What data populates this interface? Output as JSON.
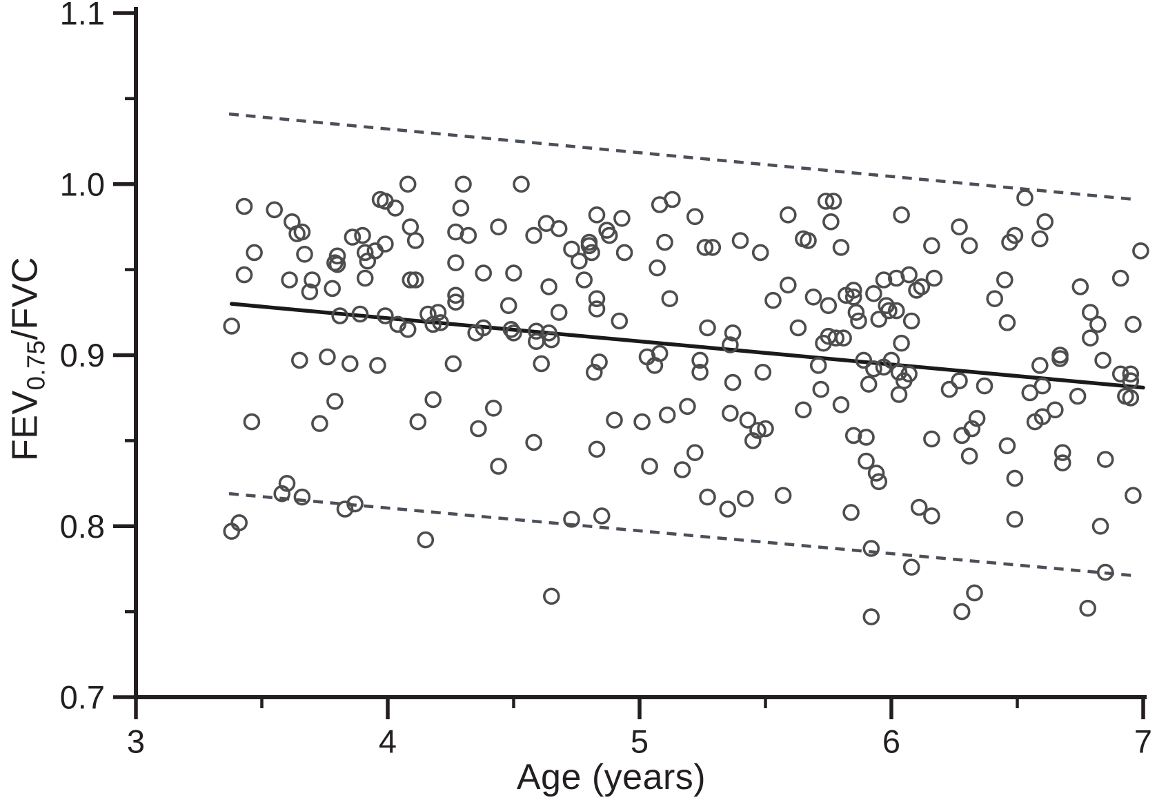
{
  "chart_data": {
    "type": "scatter",
    "xlabel": "Age (years)",
    "ylabel_main": "FEV",
    "ylabel_sub": "0.75",
    "ylabel_rest": "/FVC",
    "x_axis": {
      "min": 3,
      "max": 7,
      "major_ticks": [
        3,
        4,
        5,
        6,
        7
      ],
      "tick_labels": [
        "3",
        "4",
        "5",
        "6",
        "7"
      ],
      "minor_ticks": [
        3.5,
        4.5,
        5.5,
        6.5
      ]
    },
    "y_axis": {
      "min": 0.7,
      "max": 1.1,
      "major_ticks": [
        0.7,
        0.8,
        0.9,
        1.0,
        1.1
      ],
      "tick_labels": [
        "0.7",
        "0.8",
        "0.9",
        "1.0",
        "1.1"
      ],
      "minor_ticks": [
        0.75,
        0.85,
        0.95,
        1.05
      ]
    },
    "grid": false,
    "legend": "none",
    "regression_line": {
      "x1": 3.38,
      "y1": 0.93,
      "x2": 7.0,
      "y2": 0.881,
      "style": "solid"
    },
    "upper_limit_line": {
      "x1": 3.37,
      "y1": 1.041,
      "x2": 6.97,
      "y2": 0.991,
      "style": "dashed"
    },
    "lower_limit_line": {
      "x1": 3.37,
      "y1": 0.819,
      "x2": 6.97,
      "y2": 0.771,
      "style": "dashed"
    },
    "colors": {
      "background": "#ffffff",
      "axis": "#231f20",
      "tick_label": "#231f20",
      "point_stroke": "#4d4d4d",
      "regression": "#1a1a1a",
      "dashed": "#4b5058"
    },
    "points": [
      [
        3.43,
        0.987
      ],
      [
        3.55,
        0.985
      ],
      [
        3.62,
        0.978
      ],
      [
        3.64,
        0.971
      ],
      [
        3.66,
        0.972
      ],
      [
        3.86,
        0.969
      ],
      [
        3.9,
        0.97
      ],
      [
        3.97,
        0.991
      ],
      [
        3.99,
        0.99
      ],
      [
        3.47,
        0.96
      ],
      [
        3.67,
        0.959
      ],
      [
        3.8,
        0.958
      ],
      [
        3.8,
        0.953
      ],
      [
        3.91,
        0.96
      ],
      [
        3.95,
        0.961
      ],
      [
        3.99,
        0.965
      ],
      [
        3.92,
        0.955
      ],
      [
        3.43,
        0.947
      ],
      [
        3.61,
        0.944
      ],
      [
        3.7,
        0.944
      ],
      [
        3.69,
        0.937
      ],
      [
        3.78,
        0.939
      ],
      [
        3.79,
        0.954
      ],
      [
        3.91,
        0.945
      ],
      [
        3.81,
        0.923
      ],
      [
        3.89,
        0.924
      ],
      [
        3.99,
        0.923
      ],
      [
        3.38,
        0.917
      ],
      [
        3.65,
        0.897
      ],
      [
        3.76,
        0.899
      ],
      [
        3.85,
        0.895
      ],
      [
        3.96,
        0.894
      ],
      [
        3.79,
        0.873
      ],
      [
        3.46,
        0.861
      ],
      [
        3.73,
        0.86
      ],
      [
        3.58,
        0.819
      ],
      [
        3.6,
        0.825
      ],
      [
        3.66,
        0.817
      ],
      [
        3.83,
        0.81
      ],
      [
        3.87,
        0.813
      ],
      [
        3.38,
        0.797
      ],
      [
        3.41,
        0.802
      ],
      [
        4.08,
        1.0
      ],
      [
        4.3,
        1.0
      ],
      [
        4.53,
        1.0
      ],
      [
        4.03,
        0.986
      ],
      [
        4.29,
        0.986
      ],
      [
        4.09,
        0.975
      ],
      [
        4.11,
        0.967
      ],
      [
        4.27,
        0.972
      ],
      [
        4.32,
        0.97
      ],
      [
        4.44,
        0.975
      ],
      [
        4.58,
        0.97
      ],
      [
        4.63,
        0.977
      ],
      [
        4.68,
        0.974
      ],
      [
        4.83,
        0.982
      ],
      [
        4.93,
        0.98
      ],
      [
        4.87,
        0.973
      ],
      [
        4.88,
        0.97
      ],
      [
        4.73,
        0.962
      ],
      [
        4.8,
        0.964
      ],
      [
        4.8,
        0.966
      ],
      [
        4.81,
        0.96
      ],
      [
        4.94,
        0.96
      ],
      [
        4.76,
        0.955
      ],
      [
        4.27,
        0.954
      ],
      [
        4.38,
        0.948
      ],
      [
        4.5,
        0.948
      ],
      [
        4.09,
        0.944
      ],
      [
        4.11,
        0.944
      ],
      [
        4.78,
        0.944
      ],
      [
        4.64,
        0.94
      ],
      [
        4.83,
        0.933
      ],
      [
        4.83,
        0.927
      ],
      [
        4.27,
        0.935
      ],
      [
        4.27,
        0.931
      ],
      [
        4.48,
        0.929
      ],
      [
        4.68,
        0.925
      ],
      [
        4.92,
        0.92
      ],
      [
        4.16,
        0.924
      ],
      [
        4.2,
        0.925
      ],
      [
        4.18,
        0.918
      ],
      [
        4.21,
        0.919
      ],
      [
        4.04,
        0.918
      ],
      [
        4.08,
        0.915
      ],
      [
        4.35,
        0.913
      ],
      [
        4.38,
        0.916
      ],
      [
        4.49,
        0.915
      ],
      [
        4.5,
        0.913
      ],
      [
        4.59,
        0.914
      ],
      [
        4.59,
        0.908
      ],
      [
        4.64,
        0.913
      ],
      [
        4.65,
        0.909
      ],
      [
        4.26,
        0.895
      ],
      [
        4.61,
        0.895
      ],
      [
        4.82,
        0.89
      ],
      [
        4.84,
        0.896
      ],
      [
        4.18,
        0.874
      ],
      [
        4.12,
        0.861
      ],
      [
        4.42,
        0.869
      ],
      [
        4.36,
        0.857
      ],
      [
        4.58,
        0.849
      ],
      [
        4.44,
        0.835
      ],
      [
        4.83,
        0.845
      ],
      [
        4.9,
        0.862
      ],
      [
        4.73,
        0.804
      ],
      [
        4.85,
        0.806
      ],
      [
        4.15,
        0.792
      ],
      [
        4.65,
        0.759
      ],
      [
        5.08,
        0.988
      ],
      [
        5.13,
        0.991
      ],
      [
        5.22,
        0.981
      ],
      [
        5.59,
        0.982
      ],
      [
        5.74,
        0.99
      ],
      [
        5.77,
        0.99
      ],
      [
        5.76,
        0.978
      ],
      [
        5.1,
        0.966
      ],
      [
        5.26,
        0.963
      ],
      [
        5.29,
        0.963
      ],
      [
        5.4,
        0.967
      ],
      [
        5.48,
        0.96
      ],
      [
        5.65,
        0.968
      ],
      [
        5.67,
        0.967
      ],
      [
        5.8,
        0.963
      ],
      [
        5.07,
        0.951
      ],
      [
        5.59,
        0.941
      ],
      [
        5.12,
        0.933
      ],
      [
        5.53,
        0.932
      ],
      [
        5.69,
        0.934
      ],
      [
        5.75,
        0.929
      ],
      [
        5.82,
        0.935
      ],
      [
        5.85,
        0.938
      ],
      [
        5.85,
        0.934
      ],
      [
        5.93,
        0.936
      ],
      [
        5.97,
        0.944
      ],
      [
        5.98,
        0.929
      ],
      [
        5.99,
        0.926
      ],
      [
        5.86,
        0.925
      ],
      [
        5.87,
        0.92
      ],
      [
        5.27,
        0.916
      ],
      [
        5.37,
        0.913
      ],
      [
        5.36,
        0.906
      ],
      [
        5.63,
        0.916
      ],
      [
        5.73,
        0.907
      ],
      [
        5.75,
        0.911
      ],
      [
        5.78,
        0.91
      ],
      [
        5.81,
        0.91
      ],
      [
        5.95,
        0.921
      ],
      [
        5.03,
        0.899
      ],
      [
        5.08,
        0.901
      ],
      [
        5.06,
        0.894
      ],
      [
        5.24,
        0.897
      ],
      [
        5.24,
        0.89
      ],
      [
        5.37,
        0.884
      ],
      [
        5.49,
        0.89
      ],
      [
        5.71,
        0.894
      ],
      [
        5.72,
        0.88
      ],
      [
        5.89,
        0.897
      ],
      [
        5.93,
        0.892
      ],
      [
        5.97,
        0.893
      ],
      [
        6.0,
        0.897
      ],
      [
        5.91,
        0.883
      ],
      [
        5.19,
        0.87
      ],
      [
        5.11,
        0.865
      ],
      [
        5.01,
        0.861
      ],
      [
        5.36,
        0.866
      ],
      [
        5.43,
        0.862
      ],
      [
        5.5,
        0.857
      ],
      [
        5.47,
        0.856
      ],
      [
        5.45,
        0.85
      ],
      [
        5.65,
        0.868
      ],
      [
        5.8,
        0.871
      ],
      [
        5.85,
        0.853
      ],
      [
        5.9,
        0.852
      ],
      [
        5.9,
        0.838
      ],
      [
        5.94,
        0.831
      ],
      [
        5.95,
        0.826
      ],
      [
        5.22,
        0.843
      ],
      [
        5.17,
        0.833
      ],
      [
        5.04,
        0.835
      ],
      [
        5.27,
        0.817
      ],
      [
        5.35,
        0.81
      ],
      [
        5.42,
        0.816
      ],
      [
        5.57,
        0.818
      ],
      [
        5.84,
        0.808
      ],
      [
        5.92,
        0.787
      ],
      [
        5.92,
        0.747
      ],
      [
        6.53,
        0.992
      ],
      [
        6.04,
        0.982
      ],
      [
        6.27,
        0.975
      ],
      [
        6.61,
        0.978
      ],
      [
        6.16,
        0.964
      ],
      [
        6.31,
        0.964
      ],
      [
        6.49,
        0.97
      ],
      [
        6.47,
        0.966
      ],
      [
        6.59,
        0.968
      ],
      [
        6.99,
        0.961
      ],
      [
        6.07,
        0.947
      ],
      [
        6.02,
        0.945
      ],
      [
        6.17,
        0.945
      ],
      [
        6.1,
        0.938
      ],
      [
        6.12,
        0.94
      ],
      [
        6.45,
        0.944
      ],
      [
        6.41,
        0.933
      ],
      [
        6.91,
        0.945
      ],
      [
        6.75,
        0.94
      ],
      [
        6.02,
        0.926
      ],
      [
        6.08,
        0.92
      ],
      [
        6.04,
        0.907
      ],
      [
        6.46,
        0.919
      ],
      [
        6.79,
        0.925
      ],
      [
        6.82,
        0.918
      ],
      [
        6.79,
        0.91
      ],
      [
        6.96,
        0.918
      ],
      [
        6.03,
        0.89
      ],
      [
        6.07,
        0.889
      ],
      [
        6.05,
        0.885
      ],
      [
        6.03,
        0.877
      ],
      [
        6.23,
        0.88
      ],
      [
        6.27,
        0.885
      ],
      [
        6.37,
        0.882
      ],
      [
        6.59,
        0.894
      ],
      [
        6.67,
        0.898
      ],
      [
        6.6,
        0.882
      ],
      [
        6.55,
        0.878
      ],
      [
        6.67,
        0.9
      ],
      [
        6.84,
        0.897
      ],
      [
        6.91,
        0.889
      ],
      [
        6.95,
        0.889
      ],
      [
        6.95,
        0.885
      ],
      [
        6.93,
        0.876
      ],
      [
        6.95,
        0.875
      ],
      [
        6.74,
        0.876
      ],
      [
        6.57,
        0.861
      ],
      [
        6.6,
        0.864
      ],
      [
        6.65,
        0.868
      ],
      [
        6.34,
        0.863
      ],
      [
        6.32,
        0.857
      ],
      [
        6.28,
        0.853
      ],
      [
        6.16,
        0.851
      ],
      [
        6.31,
        0.841
      ],
      [
        6.46,
        0.847
      ],
      [
        6.49,
        0.828
      ],
      [
        6.68,
        0.843
      ],
      [
        6.68,
        0.837
      ],
      [
        6.85,
        0.839
      ],
      [
        6.96,
        0.818
      ],
      [
        6.11,
        0.811
      ],
      [
        6.16,
        0.806
      ],
      [
        6.49,
        0.804
      ],
      [
        6.83,
        0.8
      ],
      [
        6.85,
        0.773
      ],
      [
        6.08,
        0.776
      ],
      [
        6.33,
        0.761
      ],
      [
        6.28,
        0.75
      ],
      [
        6.78,
        0.752
      ]
    ]
  }
}
